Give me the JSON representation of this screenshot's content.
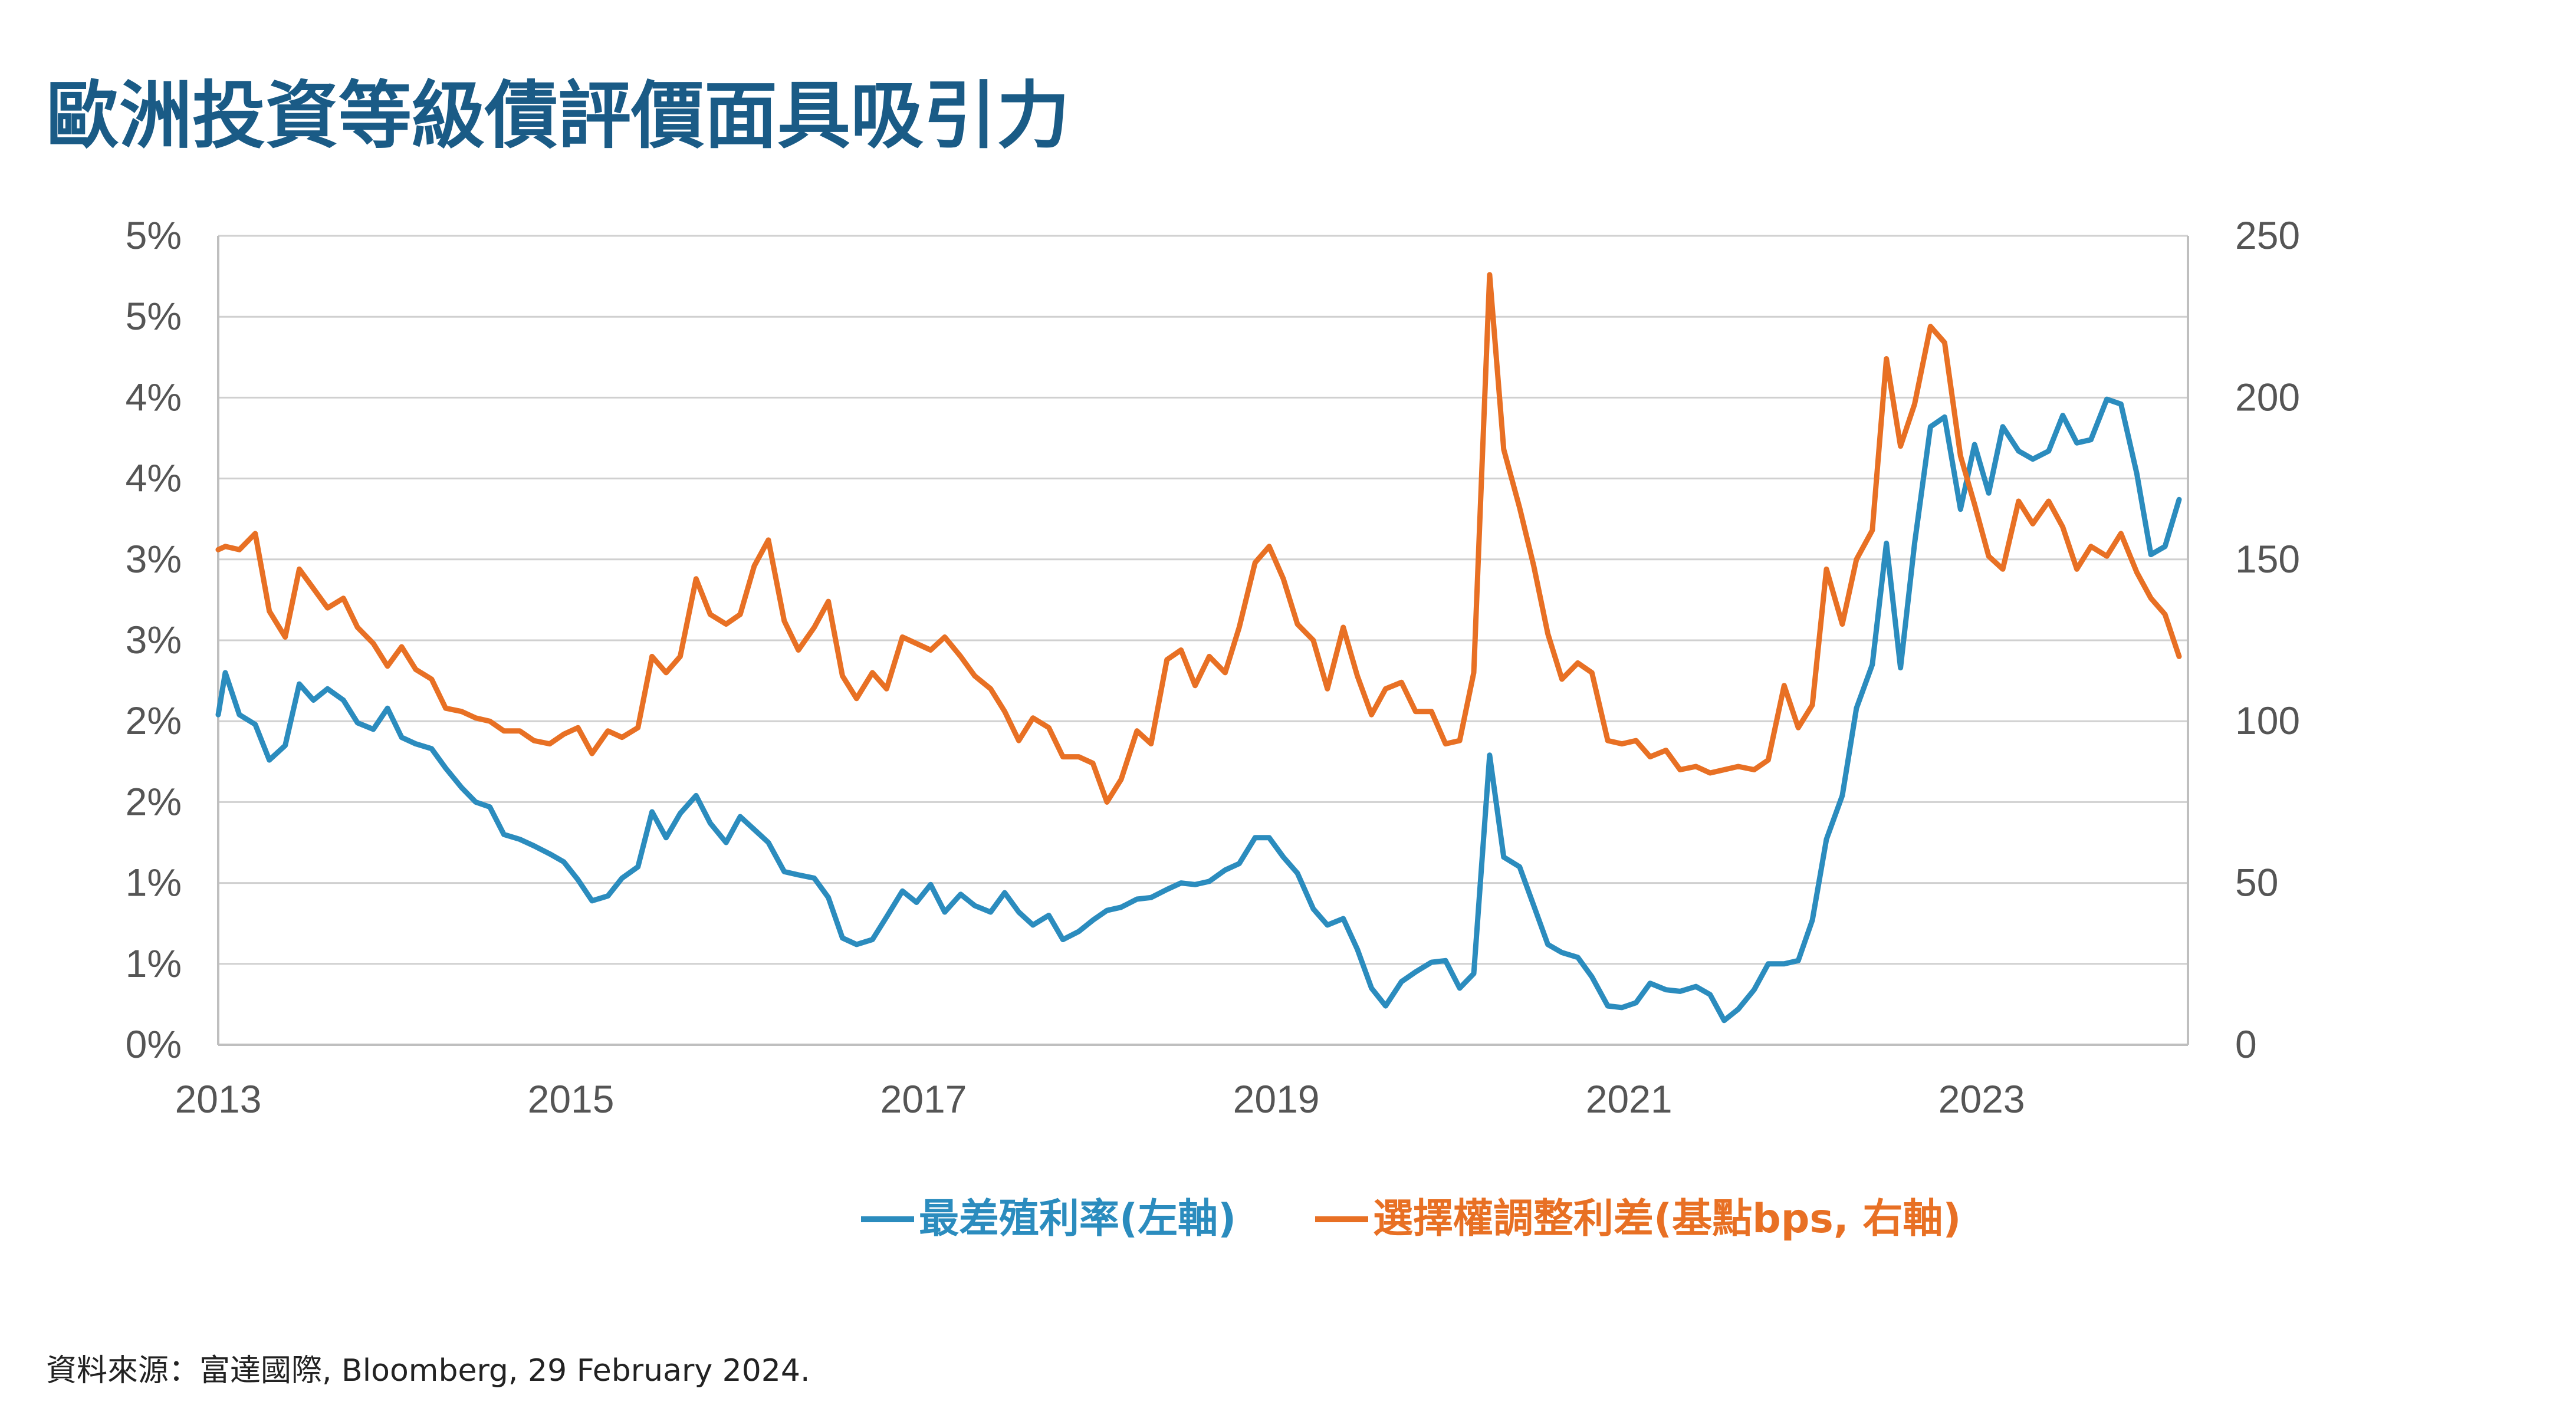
{
  "title": "歐洲投資等級債評價面具吸引力",
  "source": "資料來源：富達國際, Bloomberg, 29 February 2024.",
  "colors": {
    "title": "#1a5b86",
    "series_yield": "#2b8cbe",
    "series_oas": "#e87024",
    "grid": "#d0d0d0",
    "axis_text": "#555555"
  },
  "chart_data": {
    "type": "line",
    "title": "歐洲投資等級債評價面具吸引力",
    "xlabel": "",
    "ylabel": "",
    "x_tick_labels": [
      "2013",
      "2015",
      "2017",
      "2019",
      "2021",
      "2023"
    ],
    "x_tick_values": [
      2013,
      2015,
      2017,
      2019,
      2021,
      2023
    ],
    "xlim": [
      2013.0,
      2024.17
    ],
    "y_left_tick_labels": [
      "0%",
      "1%",
      "1%",
      "2%",
      "2%",
      "3%",
      "3%",
      "4%",
      "4%",
      "5%",
      "5%"
    ],
    "y_left_tick_values": [
      0,
      0.5,
      1.0,
      1.5,
      2.0,
      2.5,
      3.0,
      3.5,
      4.0,
      4.5,
      5.0
    ],
    "ylim_left": [
      0,
      5
    ],
    "y_right_tick_labels": [
      "0",
      "50",
      "100",
      "150",
      "200",
      "250"
    ],
    "y_right_tick_values": [
      0,
      50,
      100,
      150,
      200,
      250
    ],
    "ylim_right": [
      0,
      250
    ],
    "grid": true,
    "legend_position": "bottom-center",
    "series": [
      {
        "name": "最差殖利率(左軸)",
        "axis": "left",
        "x": [
          2013.0,
          2013.04,
          2013.12,
          2013.21,
          2013.29,
          2013.38,
          2013.46,
          2013.54,
          2013.62,
          2013.71,
          2013.79,
          2013.88,
          2013.96,
          2014.04,
          2014.12,
          2014.21,
          2014.29,
          2014.38,
          2014.46,
          2014.54,
          2014.62,
          2014.71,
          2014.79,
          2014.88,
          2014.96,
          2015.04,
          2015.12,
          2015.21,
          2015.29,
          2015.38,
          2015.46,
          2015.54,
          2015.62,
          2015.71,
          2015.79,
          2015.88,
          2015.96,
          2016.04,
          2016.12,
          2016.21,
          2016.29,
          2016.38,
          2016.46,
          2016.54,
          2016.62,
          2016.71,
          2016.79,
          2016.88,
          2016.96,
          2017.04,
          2017.12,
          2017.21,
          2017.29,
          2017.38,
          2017.46,
          2017.54,
          2017.62,
          2017.71,
          2017.79,
          2017.88,
          2017.96,
          2018.04,
          2018.12,
          2018.21,
          2018.29,
          2018.38,
          2018.46,
          2018.54,
          2018.62,
          2018.71,
          2018.79,
          2018.88,
          2018.96,
          2019.04,
          2019.12,
          2019.21,
          2019.29,
          2019.38,
          2019.46,
          2019.54,
          2019.62,
          2019.71,
          2019.79,
          2019.88,
          2019.96,
          2020.04,
          2020.12,
          2020.21,
          2020.29,
          2020.38,
          2020.46,
          2020.54,
          2020.62,
          2020.71,
          2020.79,
          2020.88,
          2020.96,
          2021.04,
          2021.12,
          2021.21,
          2021.29,
          2021.38,
          2021.46,
          2021.54,
          2021.62,
          2021.71,
          2021.79,
          2021.88,
          2021.96,
          2022.04,
          2022.12,
          2022.21,
          2022.29,
          2022.38,
          2022.46,
          2022.54,
          2022.62,
          2022.71,
          2022.79,
          2022.88,
          2022.96,
          2023.04,
          2023.12,
          2023.21,
          2023.29,
          2023.38,
          2023.46,
          2023.54,
          2023.62,
          2023.71,
          2023.79,
          2023.88,
          2023.96,
          2024.04,
          2024.12
        ],
        "y": [
          2.04,
          2.3,
          2.04,
          1.98,
          1.76,
          1.85,
          2.23,
          2.13,
          2.2,
          2.13,
          1.99,
          1.95,
          2.08,
          1.9,
          1.86,
          1.83,
          1.71,
          1.59,
          1.5,
          1.47,
          1.3,
          1.27,
          1.23,
          1.18,
          1.13,
          1.02,
          0.89,
          0.92,
          1.03,
          1.1,
          1.44,
          1.28,
          1.43,
          1.54,
          1.37,
          1.25,
          1.41,
          1.33,
          1.25,
          1.07,
          1.05,
          1.03,
          0.91,
          0.66,
          0.62,
          0.65,
          0.79,
          0.95,
          0.88,
          0.99,
          0.82,
          0.93,
          0.86,
          0.82,
          0.94,
          0.82,
          0.74,
          0.8,
          0.65,
          0.7,
          0.77,
          0.83,
          0.85,
          0.9,
          0.91,
          0.96,
          1.0,
          0.99,
          1.01,
          1.08,
          1.12,
          1.28,
          1.28,
          1.16,
          1.06,
          0.84,
          0.74,
          0.78,
          0.59,
          0.35,
          0.24,
          0.39,
          0.45,
          0.51,
          0.52,
          0.35,
          0.44,
          1.79,
          1.16,
          1.1,
          0.86,
          0.62,
          0.57,
          0.54,
          0.42,
          0.24,
          0.23,
          0.26,
          0.38,
          0.34,
          0.33,
          0.36,
          0.31,
          0.15,
          0.22,
          0.34,
          0.5,
          0.5,
          0.52,
          0.77,
          1.27,
          1.54,
          2.08,
          2.35,
          3.1,
          2.33,
          3.1,
          3.82,
          3.88,
          3.31,
          3.71,
          3.41,
          3.82,
          3.67,
          3.62,
          3.67,
          3.89,
          3.72,
          3.74,
          3.99,
          3.96,
          3.53,
          3.03,
          3.08,
          3.37
        ]
      },
      {
        "name": "選擇權調整利差(基點bps, 右軸)",
        "axis": "right",
        "x": [
          2013.0,
          2013.04,
          2013.12,
          2013.21,
          2013.29,
          2013.38,
          2013.46,
          2013.54,
          2013.62,
          2013.71,
          2013.79,
          2013.88,
          2013.96,
          2014.04,
          2014.12,
          2014.21,
          2014.29,
          2014.38,
          2014.46,
          2014.54,
          2014.62,
          2014.71,
          2014.79,
          2014.88,
          2014.96,
          2015.04,
          2015.12,
          2015.21,
          2015.29,
          2015.38,
          2015.46,
          2015.54,
          2015.62,
          2015.71,
          2015.79,
          2015.88,
          2015.96,
          2016.04,
          2016.12,
          2016.21,
          2016.29,
          2016.38,
          2016.46,
          2016.54,
          2016.62,
          2016.71,
          2016.79,
          2016.88,
          2016.96,
          2017.04,
          2017.12,
          2017.21,
          2017.29,
          2017.38,
          2017.46,
          2017.54,
          2017.62,
          2017.71,
          2017.79,
          2017.88,
          2017.96,
          2018.04,
          2018.12,
          2018.21,
          2018.29,
          2018.38,
          2018.46,
          2018.54,
          2018.62,
          2018.71,
          2018.79,
          2018.88,
          2018.96,
          2019.04,
          2019.12,
          2019.21,
          2019.29,
          2019.38,
          2019.46,
          2019.54,
          2019.62,
          2019.71,
          2019.79,
          2019.88,
          2019.96,
          2020.04,
          2020.12,
          2020.21,
          2020.29,
          2020.38,
          2020.46,
          2020.54,
          2020.62,
          2020.71,
          2020.79,
          2020.88,
          2020.96,
          2021.04,
          2021.12,
          2021.21,
          2021.29,
          2021.38,
          2021.46,
          2021.54,
          2021.62,
          2021.71,
          2021.79,
          2021.88,
          2021.96,
          2022.04,
          2022.12,
          2022.21,
          2022.29,
          2022.38,
          2022.46,
          2022.54,
          2022.62,
          2022.71,
          2022.79,
          2022.88,
          2022.96,
          2023.04,
          2023.12,
          2023.21,
          2023.29,
          2023.38,
          2023.46,
          2023.54,
          2023.62,
          2023.71,
          2023.79,
          2023.88,
          2023.96,
          2024.04,
          2024.12
        ],
        "y": [
          153,
          154,
          153,
          158,
          134,
          126,
          147,
          141,
          135,
          138,
          129,
          124,
          117,
          123,
          116,
          113,
          104,
          103,
          101,
          100,
          97,
          97,
          94,
          93,
          96,
          98,
          90,
          97,
          95,
          98,
          120,
          115,
          120,
          144,
          133,
          130,
          133,
          148,
          156,
          131,
          122,
          129,
          137,
          114,
          107,
          115,
          110,
          126,
          124,
          122,
          126,
          120,
          114,
          110,
          103,
          94,
          101,
          98,
          89,
          89,
          87,
          75,
          82,
          97,
          93,
          119,
          122,
          111,
          120,
          115,
          129,
          149,
          154,
          144,
          130,
          125,
          110,
          129,
          114,
          102,
          110,
          112,
          103,
          103,
          93,
          94,
          115,
          238,
          184,
          166,
          148,
          127,
          113,
          118,
          115,
          94,
          93,
          94,
          89,
          91,
          85,
          86,
          84,
          85,
          86,
          85,
          88,
          111,
          98,
          105,
          147,
          130,
          150,
          159,
          212,
          185,
          198,
          222,
          217,
          182,
          167,
          151,
          147,
          168,
          161,
          168,
          160,
          147,
          154,
          151,
          158,
          146,
          138,
          133,
          120
        ]
      }
    ]
  }
}
